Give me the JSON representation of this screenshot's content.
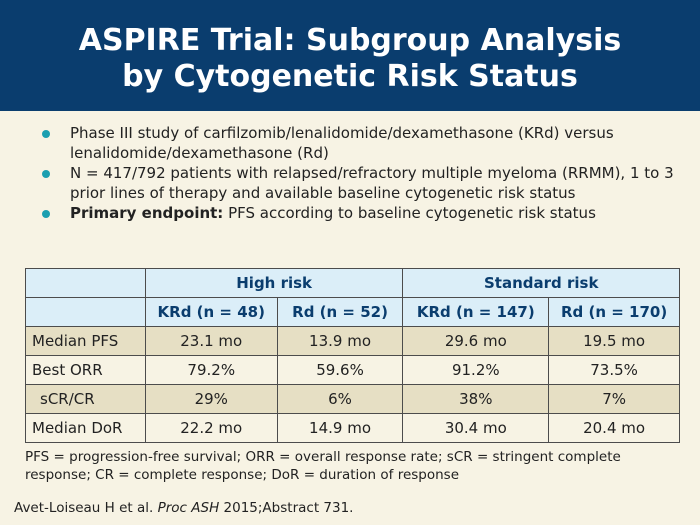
{
  "header": {
    "title_line1": "ASPIRE Trial: Subgroup Analysis",
    "title_line2": "by Cytogenetic Risk Status"
  },
  "bullets": [
    {
      "text": "Phase III study of carfilzomib/lenalidomide/dexamethasone (KRd) versus lenalidomide/dexamethasone (Rd)"
    },
    {
      "text": "N = 417/792 patients with relapsed/refractory multiple myeloma (RRMM), 1 to 3 prior lines of therapy and available baseline cytogenetic risk status"
    },
    {
      "bold": "Primary endpoint:",
      "text": " PFS according to baseline cytogenetic risk status"
    }
  ],
  "table": {
    "groups": [
      "High risk",
      "Standard risk"
    ],
    "subheaders": [
      "KRd (n = 48)",
      "Rd (n = 52)",
      "KRd (n = 147)",
      "Rd (n = 170)"
    ],
    "rows": [
      {
        "label": "Median PFS",
        "values": [
          "23.1 mo",
          "13.9 mo",
          "29.6 mo",
          "19.5 mo"
        ]
      },
      {
        "label": "Best ORR",
        "values": [
          "79.2%",
          "59.6%",
          "91.2%",
          "73.5%"
        ]
      },
      {
        "label": "sCR/CR",
        "values": [
          "29%",
          "6%",
          "38%",
          "7%"
        ]
      },
      {
        "label": "Median DoR",
        "values": [
          "22.2 mo",
          "14.9 mo",
          "30.4 mo",
          "20.4 mo"
        ]
      }
    ]
  },
  "footnote": "PFS = progression-free survival; ORR = overall response rate; sCR = stringent complete response; CR = complete response; DoR = duration of response",
  "citation": {
    "authors": "Avet-Loiseau H et al.",
    "journal": "Proc ASH",
    "details": "2015;Abstract 731."
  },
  "colors": {
    "header_bg": "#0a3d6e",
    "bullet": "#1b9fb0",
    "page_bg": "#f7f3e4",
    "table_header_bg": "#dbeef8",
    "table_alt_row": "#e6dfc4"
  }
}
